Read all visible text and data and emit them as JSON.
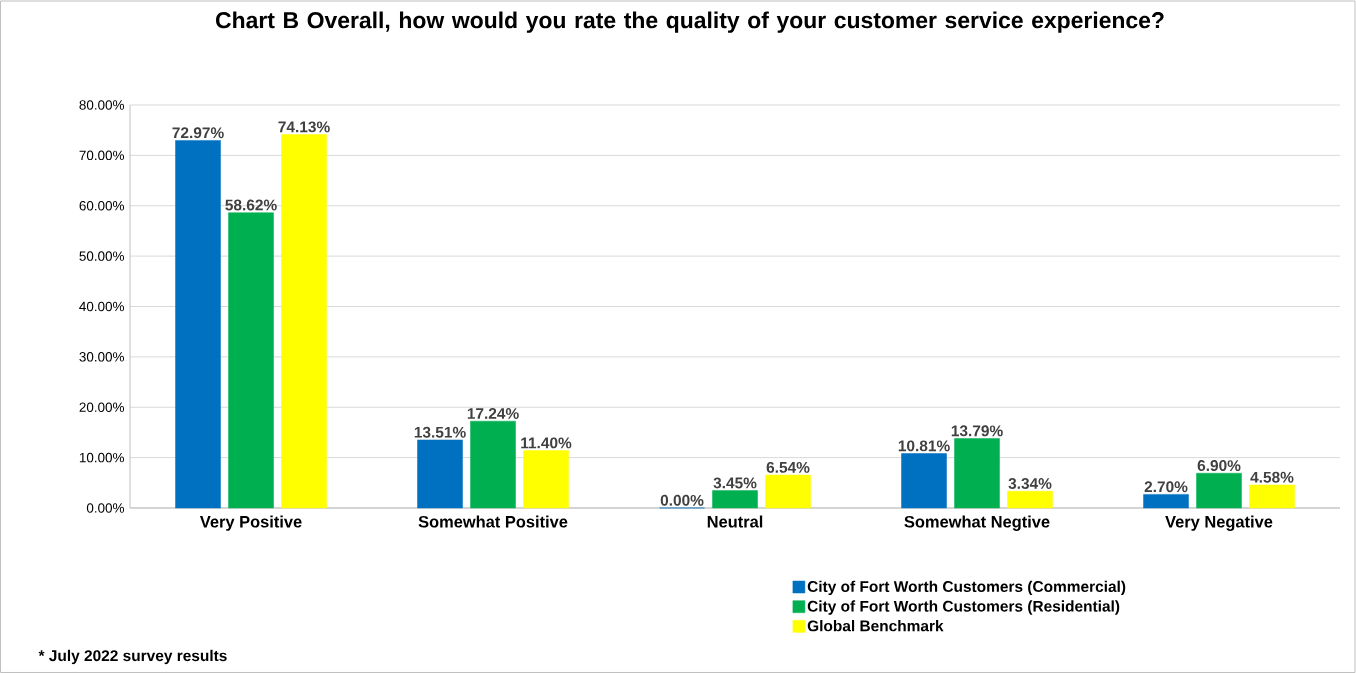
{
  "chart_data": {
    "type": "bar",
    "title": "Chart B Overall, how would you rate the quality of your customer service experience?",
    "categories": [
      "Very Positive",
      "Somewhat Positive",
      "Neutral",
      "Somewhat Negtive",
      "Very Negative"
    ],
    "series": [
      {
        "name": "City of Fort Worth Customers (Commercial)",
        "color": "#0070c0",
        "values": [
          72.97,
          13.51,
          0.0,
          10.81,
          2.7
        ],
        "value_labels": [
          "72.97%",
          "13.51%",
          "0.00%",
          "10.81%",
          "2.70%"
        ]
      },
      {
        "name": "City of Fort Worth Customers (Residential)",
        "color": "#00b050",
        "values": [
          58.62,
          17.24,
          3.45,
          13.79,
          6.9
        ],
        "value_labels": [
          "58.62%",
          "17.24%",
          "3.45%",
          "13.79%",
          "6.90%"
        ]
      },
      {
        "name": "Global Benchmark",
        "color": "#ffff00",
        "values": [
          74.13,
          11.4,
          6.54,
          3.34,
          4.58
        ],
        "value_labels": [
          "74.13%",
          "11.40%",
          "6.54%",
          "3.34%",
          "4.58%"
        ]
      }
    ],
    "ylim": [
      0,
      80
    ],
    "yticks": [
      {
        "value": 0,
        "label": "0.00%"
      },
      {
        "value": 10,
        "label": "10.00%"
      },
      {
        "value": 20,
        "label": "20.00%"
      },
      {
        "value": 30,
        "label": "30.00%"
      },
      {
        "value": 40,
        "label": "40.00%"
      },
      {
        "value": 50,
        "label": "50.00%"
      },
      {
        "value": 60,
        "label": "60.00%"
      },
      {
        "value": 70,
        "label": "70.00%"
      },
      {
        "value": 80,
        "label": "80.00%"
      }
    ],
    "grid": "y",
    "legend": "bottom right",
    "annotations": [
      "* July 2022 survey results"
    ]
  }
}
